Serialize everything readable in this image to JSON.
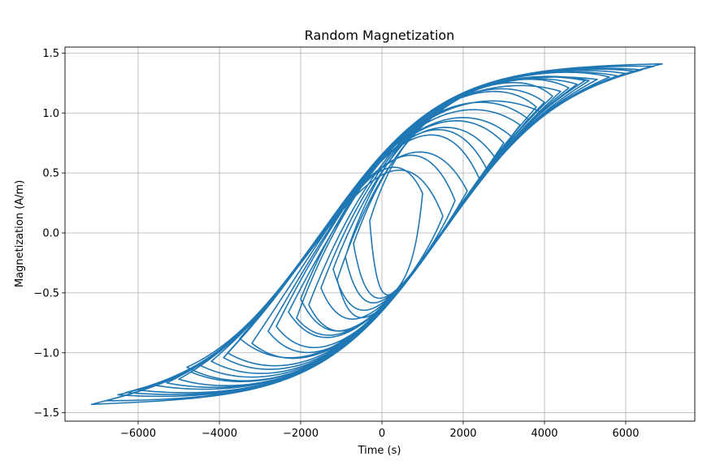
{
  "chart_data": {
    "type": "line",
    "title": "Random Magnetization",
    "xlabel": "Time (s)",
    "ylabel": "Magnetization (A/m)",
    "xlim": [
      -7800,
      7700
    ],
    "ylim": [
      -1.57,
      1.55
    ],
    "xticks": [
      -6000,
      -4000,
      -2000,
      0,
      2000,
      4000,
      6000
    ],
    "xtick_labels": [
      "−6000",
      "−4000",
      "−2000",
      "0",
      "2000",
      "4000",
      "6000"
    ],
    "yticks": [
      -1.5,
      -1.0,
      -0.5,
      0.0,
      0.5,
      1.0,
      1.5
    ],
    "ytick_labels": [
      "−1.5",
      "−1.0",
      "−0.5",
      "0.0",
      "0.5",
      "1.0",
      "1.5"
    ],
    "grid": true,
    "series_color": "#1f77b4",
    "model": {
      "saturation": 1.42,
      "coercivity": 1500,
      "width": 3000
    },
    "x_extent": [
      -7150,
      6900
    ],
    "branch_endpoints": [
      [
        -7150,
        -1.43
      ],
      [
        6900,
        1.41
      ],
      [
        -6500,
        -1.35
      ],
      [
        5000,
        1.27
      ],
      [
        -3200,
        -0.92
      ],
      [
        4400,
        1.18
      ],
      [
        -4800,
        -1.12
      ],
      [
        3800,
        1.05
      ],
      [
        -2000,
        -0.55
      ],
      [
        3000,
        0.75
      ],
      [
        -5600,
        -1.27
      ],
      [
        6400,
        1.36
      ],
      [
        -1200,
        -0.3
      ],
      [
        2400,
        0.45
      ],
      [
        -3800,
        -1.0
      ],
      [
        5600,
        1.3
      ],
      [
        -700,
        -0.09
      ],
      [
        1800,
        0.27
      ],
      [
        -4200,
        -1.07
      ],
      [
        4800,
        1.24
      ],
      [
        -2600,
        -0.78
      ],
      [
        3400,
        0.9
      ],
      [
        -6000,
        -1.31
      ],
      [
        6000,
        1.33
      ],
      [
        -1500,
        -0.46
      ],
      [
        2800,
        0.62
      ],
      [
        -5000,
        -1.22
      ],
      [
        4200,
        1.14
      ],
      [
        -300,
        0.1
      ],
      [
        1000,
        0.33
      ],
      [
        -3500,
        -0.88
      ],
      [
        5300,
        1.28
      ],
      [
        -6800,
        -1.4
      ],
      [
        6700,
        1.39
      ],
      [
        -2300,
        -0.66
      ],
      [
        3600,
        0.95
      ],
      [
        -4500,
        -1.1
      ],
      [
        4600,
        1.21
      ],
      [
        -900,
        -0.2
      ],
      [
        2100,
        0.35
      ],
      [
        -5300,
        -1.25
      ],
      [
        5800,
        1.31
      ],
      [
        -1800,
        -0.6
      ],
      [
        2600,
        0.52
      ],
      [
        -3900,
        -1.04
      ],
      [
        5100,
        1.27
      ],
      [
        -2800,
        -0.82
      ],
      [
        3200,
        0.8
      ],
      [
        -6300,
        -1.33
      ],
      [
        6200,
        1.35
      ],
      [
        -1100,
        -0.39
      ],
      [
        1500,
        0.14
      ],
      [
        -4700,
        -1.16
      ],
      [
        4000,
        1.09
      ],
      [
        -2100,
        -0.71
      ],
      [
        3900,
        1.01
      ],
      [
        -7150,
        -1.43
      ],
      [
        6900,
        1.41
      ]
    ]
  }
}
